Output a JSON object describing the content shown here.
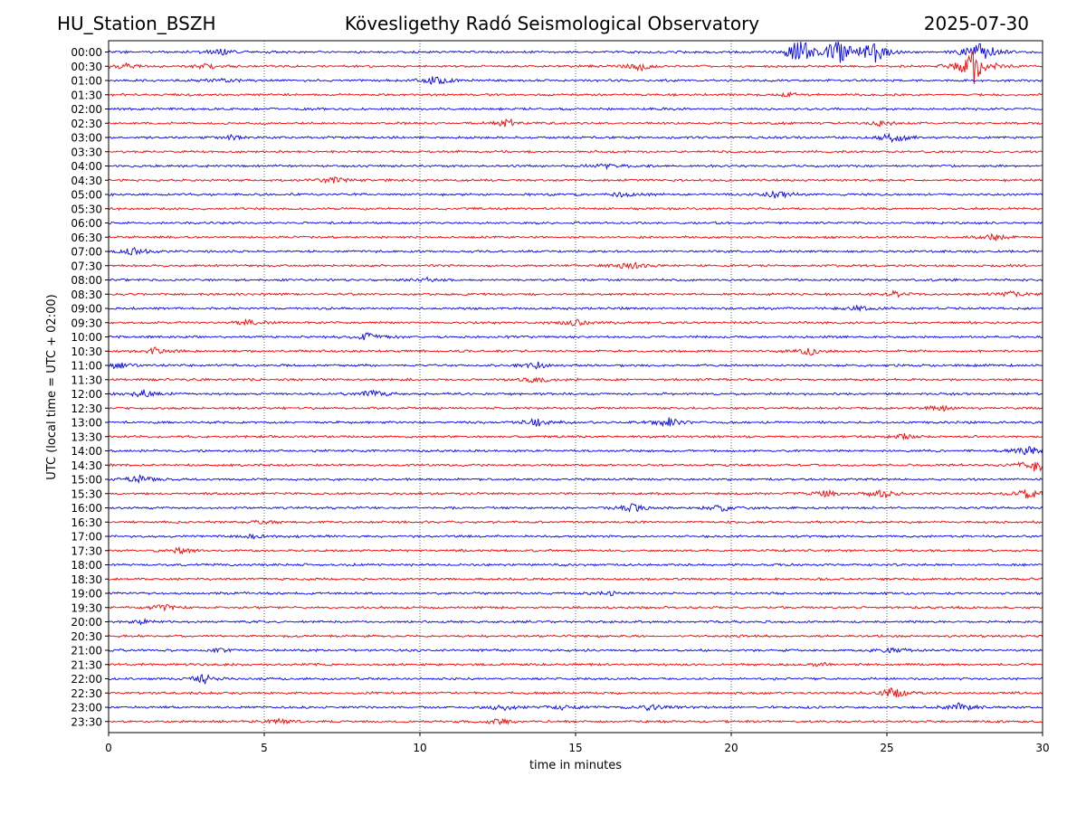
{
  "header": {
    "station": "HU_Station_BSZH",
    "observatory": "Kövesligethy Radó Seismological Observatory",
    "date": "2025-07-30"
  },
  "chart_data": {
    "type": "line",
    "title": "Kövesligethy Radó Seismological Observatory",
    "xlabel": "time in minutes",
    "ylabel": "UTC (local time = UTC + 02:00)",
    "xlim": [
      0,
      30
    ],
    "x_ticks": [
      0,
      5,
      10,
      15,
      20,
      25,
      30
    ],
    "vertical_grid": "dotted",
    "colors": [
      "#0000ff",
      "#ff0000"
    ],
    "rows": [
      {
        "label": "00:00",
        "color": "#0000ff",
        "events": [
          {
            "t": 3.6,
            "amp": 1.2
          },
          {
            "t": 22.2,
            "amp": 5
          },
          {
            "t": 23.4,
            "amp": 5
          },
          {
            "t": 24.6,
            "amp": 4
          },
          {
            "t": 28.0,
            "amp": 5
          }
        ]
      },
      {
        "label": "00:30",
        "color": "#ff0000",
        "events": [
          {
            "t": 0.5,
            "amp": 1.0
          },
          {
            "t": 3.2,
            "amp": 1.0
          },
          {
            "t": 17.1,
            "amp": 1.5
          },
          {
            "t": 27.8,
            "amp": 6
          }
        ]
      },
      {
        "label": "01:00",
        "color": "#0000ff",
        "events": [
          {
            "t": 3.8,
            "amp": 0.8
          },
          {
            "t": 10.5,
            "amp": 1.8
          }
        ]
      },
      {
        "label": "01:30",
        "color": "#ff0000",
        "events": [
          {
            "t": 22.0,
            "amp": 0.8
          }
        ]
      },
      {
        "label": "02:00",
        "color": "#0000ff",
        "events": []
      },
      {
        "label": "02:30",
        "color": "#ff0000",
        "events": [
          {
            "t": 12.8,
            "amp": 1.5
          },
          {
            "t": 24.8,
            "amp": 0.8
          }
        ]
      },
      {
        "label": "03:00",
        "color": "#0000ff",
        "events": [
          {
            "t": 4.0,
            "amp": 0.6
          },
          {
            "t": 25.2,
            "amp": 2.0
          }
        ]
      },
      {
        "label": "03:30",
        "color": "#ff0000",
        "events": []
      },
      {
        "label": "04:00",
        "color": "#0000ff",
        "events": [
          {
            "t": 16.0,
            "amp": 0.7
          }
        ]
      },
      {
        "label": "04:30",
        "color": "#ff0000",
        "events": [
          {
            "t": 7.2,
            "amp": 1.0
          }
        ]
      },
      {
        "label": "05:00",
        "color": "#0000ff",
        "events": [
          {
            "t": 16.5,
            "amp": 0.8
          },
          {
            "t": 21.5,
            "amp": 1.6
          }
        ]
      },
      {
        "label": "05:30",
        "color": "#ff0000",
        "events": []
      },
      {
        "label": "06:00",
        "color": "#0000ff",
        "events": []
      },
      {
        "label": "06:30",
        "color": "#ff0000",
        "events": [
          {
            "t": 28.5,
            "amp": 1.0
          }
        ]
      },
      {
        "label": "07:00",
        "color": "#0000ff",
        "events": [
          {
            "t": 0.8,
            "amp": 1.2
          }
        ]
      },
      {
        "label": "07:30",
        "color": "#ff0000",
        "events": [
          {
            "t": 16.7,
            "amp": 1.8
          }
        ]
      },
      {
        "label": "08:00",
        "color": "#0000ff",
        "events": [
          {
            "t": 10.2,
            "amp": 0.8
          }
        ]
      },
      {
        "label": "08:30",
        "color": "#ff0000",
        "events": [
          {
            "t": 25.2,
            "amp": 1.0
          },
          {
            "t": 29.0,
            "amp": 1.0
          }
        ]
      },
      {
        "label": "09:00",
        "color": "#0000ff",
        "events": [
          {
            "t": 24.0,
            "amp": 1.0
          }
        ]
      },
      {
        "label": "09:30",
        "color": "#ff0000",
        "events": [
          {
            "t": 4.5,
            "amp": 1.0
          },
          {
            "t": 15.0,
            "amp": 1.0
          }
        ]
      },
      {
        "label": "10:00",
        "color": "#0000ff",
        "events": [
          {
            "t": 8.3,
            "amp": 1.6
          }
        ]
      },
      {
        "label": "10:30",
        "color": "#ff0000",
        "events": [
          {
            "t": 1.5,
            "amp": 1.0
          },
          {
            "t": 22.5,
            "amp": 1.2
          }
        ]
      },
      {
        "label": "11:00",
        "color": "#0000ff",
        "events": [
          {
            "t": 0.3,
            "amp": 1.2
          },
          {
            "t": 13.8,
            "amp": 1.2
          }
        ]
      },
      {
        "label": "11:30",
        "color": "#ff0000",
        "events": [
          {
            "t": 13.8,
            "amp": 1.2
          }
        ]
      },
      {
        "label": "12:00",
        "color": "#0000ff",
        "events": [
          {
            "t": 1.1,
            "amp": 1.3
          },
          {
            "t": 8.5,
            "amp": 1.2
          }
        ]
      },
      {
        "label": "12:30",
        "color": "#ff0000",
        "events": [
          {
            "t": 26.7,
            "amp": 1.2
          }
        ]
      },
      {
        "label": "13:00",
        "color": "#0000ff",
        "events": [
          {
            "t": 13.8,
            "amp": 1.5
          },
          {
            "t": 18.0,
            "amp": 1.5
          }
        ]
      },
      {
        "label": "13:30",
        "color": "#ff0000",
        "events": [
          {
            "t": 25.5,
            "amp": 1.0
          }
        ]
      },
      {
        "label": "14:00",
        "color": "#0000ff",
        "events": [
          {
            "t": 29.6,
            "amp": 2.0
          }
        ]
      },
      {
        "label": "14:30",
        "color": "#ff0000",
        "events": [
          {
            "t": 29.8,
            "amp": 2.5
          }
        ]
      },
      {
        "label": "15:00",
        "color": "#0000ff",
        "events": [
          {
            "t": 1.0,
            "amp": 1.2
          }
        ]
      },
      {
        "label": "15:30",
        "color": "#ff0000",
        "events": [
          {
            "t": 23.0,
            "amp": 1.2
          },
          {
            "t": 24.8,
            "amp": 1.6
          },
          {
            "t": 29.6,
            "amp": 2.0
          }
        ]
      },
      {
        "label": "16:00",
        "color": "#0000ff",
        "events": [
          {
            "t": 16.8,
            "amp": 1.5
          },
          {
            "t": 19.7,
            "amp": 1.5
          }
        ]
      },
      {
        "label": "16:30",
        "color": "#ff0000",
        "events": [
          {
            "t": 5.0,
            "amp": 0.7
          }
        ]
      },
      {
        "label": "17:00",
        "color": "#0000ff",
        "events": [
          {
            "t": 4.5,
            "amp": 0.7
          }
        ]
      },
      {
        "label": "17:30",
        "color": "#ff0000",
        "events": [
          {
            "t": 2.3,
            "amp": 1.0
          }
        ]
      },
      {
        "label": "18:00",
        "color": "#0000ff",
        "events": []
      },
      {
        "label": "18:30",
        "color": "#ff0000",
        "events": []
      },
      {
        "label": "19:00",
        "color": "#0000ff",
        "events": [
          {
            "t": 16.0,
            "amp": 0.8
          }
        ]
      },
      {
        "label": "19:30",
        "color": "#ff0000",
        "events": [
          {
            "t": 1.8,
            "amp": 1.0
          }
        ]
      },
      {
        "label": "20:00",
        "color": "#0000ff",
        "events": [
          {
            "t": 1.0,
            "amp": 0.8
          }
        ]
      },
      {
        "label": "20:30",
        "color": "#ff0000",
        "events": []
      },
      {
        "label": "21:00",
        "color": "#0000ff",
        "events": [
          {
            "t": 3.6,
            "amp": 0.7
          },
          {
            "t": 25.2,
            "amp": 0.8
          }
        ]
      },
      {
        "label": "21:30",
        "color": "#ff0000",
        "events": [
          {
            "t": 23.0,
            "amp": 0.7
          }
        ]
      },
      {
        "label": "22:00",
        "color": "#0000ff",
        "events": [
          {
            "t": 3.1,
            "amp": 1.6
          }
        ]
      },
      {
        "label": "22:30",
        "color": "#ff0000",
        "events": [
          {
            "t": 25.2,
            "amp": 1.8
          }
        ]
      },
      {
        "label": "23:00",
        "color": "#0000ff",
        "events": [
          {
            "t": 12.7,
            "amp": 1.0
          },
          {
            "t": 14.6,
            "amp": 0.8
          },
          {
            "t": 17.4,
            "amp": 1.0
          },
          {
            "t": 27.3,
            "amp": 1.4
          }
        ]
      },
      {
        "label": "23:30",
        "color": "#ff0000",
        "events": [
          {
            "t": 5.5,
            "amp": 1.0
          },
          {
            "t": 12.5,
            "amp": 1.0
          }
        ]
      }
    ]
  }
}
